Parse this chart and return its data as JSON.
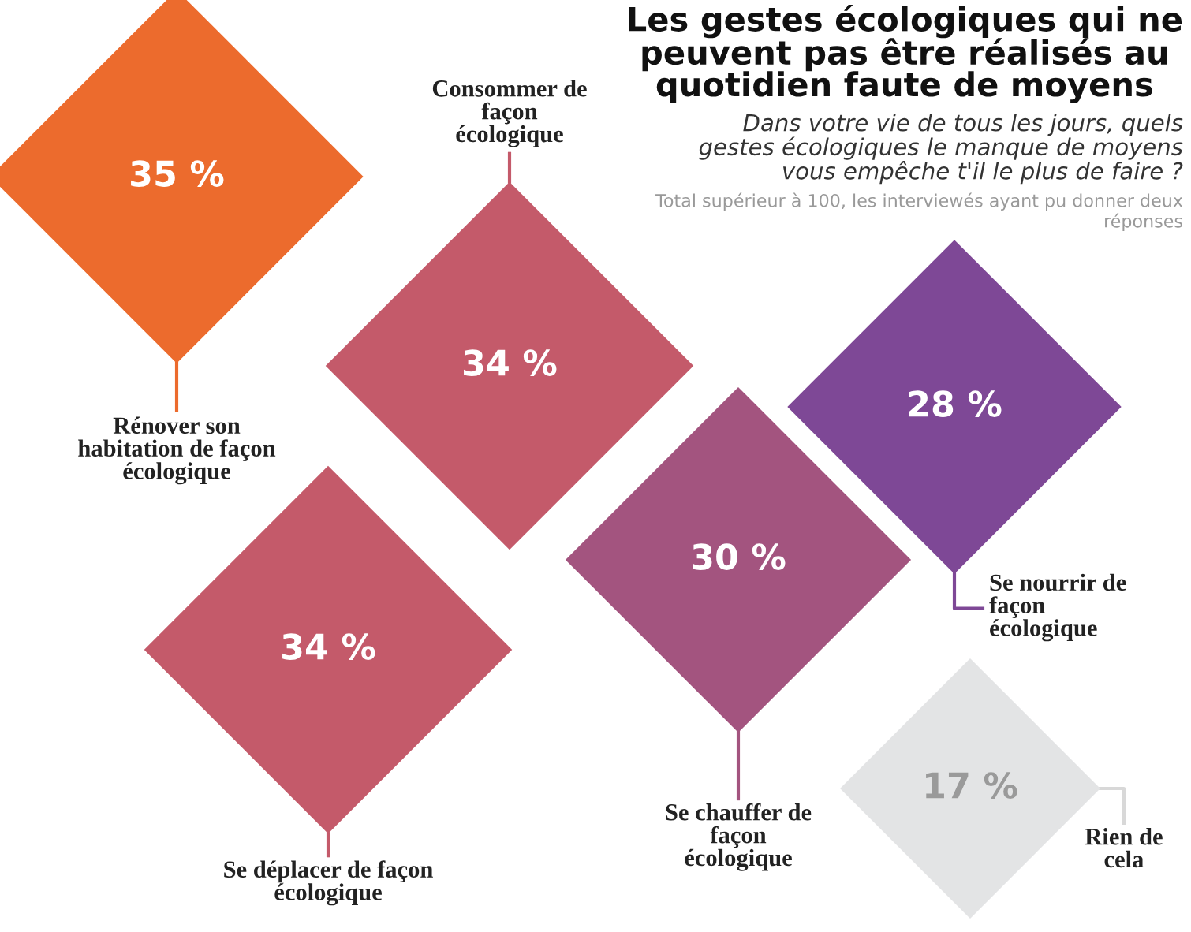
{
  "chart_data": {
    "type": "other",
    "title": "Les gestes écologiques qui ne peuvent pas être réalisés au quotidien faute de moyens",
    "subtitle": "Dans votre vie de tous les jours, quels gestes écologiques le manque de moyens vous empêche t'il le plus de faire ?",
    "annotations": [
      "Total supérieur à 100, les interviewés ayant pu donner deux réponses"
    ],
    "categories": [
      "Rénover son habitation de façon écologique",
      "Consommer de façon écologique",
      "Se déplacer de façon écologique",
      "Se chauffer de façon écologique",
      "Se nourrir de façon écologique",
      "Rien de cela"
    ],
    "values": [
      35,
      34,
      34,
      30,
      28,
      17
    ],
    "value_labels": [
      "35 %",
      "34 %",
      "34 %",
      "30 %",
      "28 %",
      "17 %"
    ],
    "colors": [
      "#ec6b2d",
      "#c45a6a",
      "#c45a6a",
      "#a3547f",
      "#7e4896",
      "#e3e4e5"
    ]
  }
}
